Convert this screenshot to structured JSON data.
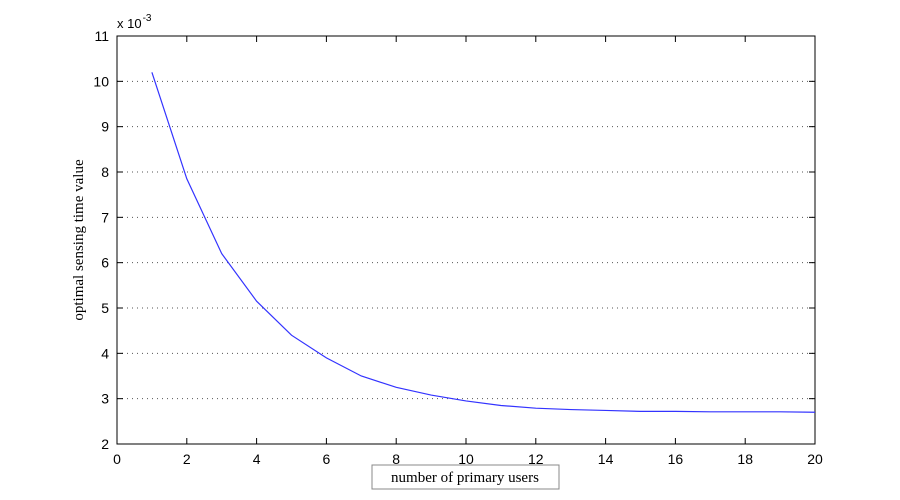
{
  "chart_data": {
    "type": "line",
    "title": "",
    "xlabel": "number of primary users",
    "ylabel": "optimal sensing time value",
    "y_scale_base": "x 10",
    "y_scale_exponent": "-3",
    "xlim": [
      0,
      20
    ],
    "ylim": [
      2,
      11
    ],
    "xticks": [
      0,
      2,
      4,
      6,
      8,
      10,
      12,
      14,
      16,
      18,
      20
    ],
    "yticks": [
      2,
      3,
      4,
      5,
      6,
      7,
      8,
      9,
      10,
      11
    ],
    "grid": true,
    "line_color": "#3333ff",
    "series": [
      {
        "x": [
          1,
          2,
          3,
          4,
          5,
          6,
          7,
          8,
          9,
          10,
          11,
          12,
          13,
          14,
          15,
          16,
          17,
          18,
          19,
          20
        ],
        "values": [
          10.2,
          7.85,
          6.2,
          5.15,
          4.4,
          3.9,
          3.5,
          3.25,
          3.08,
          2.95,
          2.85,
          2.79,
          2.76,
          2.74,
          2.72,
          2.72,
          2.71,
          2.71,
          2.71,
          2.7
        ]
      }
    ]
  }
}
